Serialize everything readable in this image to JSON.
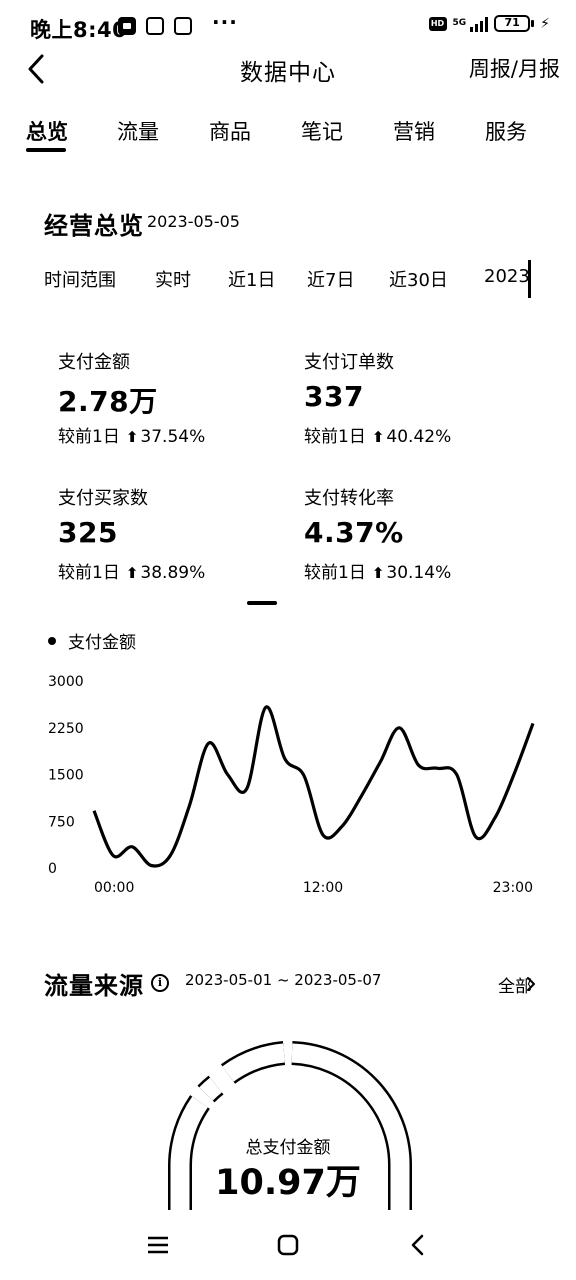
{
  "status_bar": {
    "time": "晚上8:40",
    "network": "5G",
    "battery": "71",
    "icons": [
      "notification-icon",
      "message-icon",
      "app-icon",
      "more-dots-icon",
      "hd-icon",
      "signal-icon",
      "battery-icon",
      "charging-icon"
    ]
  },
  "header": {
    "back_icon": "chevron-left-icon",
    "title": "数据中心",
    "right_action": "周报/月报"
  },
  "tabs": [
    {
      "label": "总览",
      "active": true
    },
    {
      "label": "流量"
    },
    {
      "label": "商品"
    },
    {
      "label": "笔记"
    },
    {
      "label": "营销"
    },
    {
      "label": "服务"
    }
  ],
  "overview": {
    "title": "经营总览",
    "date": "2023-05-05",
    "range_label": "时间范围",
    "ranges": [
      "实时",
      "近1日",
      "近7日",
      "近30日",
      "2023"
    ]
  },
  "metrics": [
    {
      "label": "支付金额",
      "value": "2.78万",
      "compare_label": "较前1日",
      "change": "37.54%",
      "direction": "up"
    },
    {
      "label": "支付订单数",
      "value": "337",
      "compare_label": "较前1日",
      "change": "40.42%",
      "direction": "up"
    },
    {
      "label": "支付买家数",
      "value": "325",
      "compare_label": "较前1日",
      "change": "38.89%",
      "direction": "up"
    },
    {
      "label": "支付转化率",
      "value": "4.37%",
      "compare_label": "较前1日",
      "change": "30.14%",
      "direction": "up"
    }
  ],
  "chart_data": {
    "type": "line",
    "legend": [
      "支付金额"
    ],
    "series": [
      {
        "name": "支付金额",
        "x": [
          0,
          1,
          2,
          3,
          4,
          5,
          6,
          7,
          8,
          9,
          10,
          11,
          12,
          13,
          14,
          15,
          16,
          17,
          18,
          19,
          20,
          21,
          22,
          23
        ],
        "values": [
          920,
          200,
          340,
          40,
          200,
          1000,
          2000,
          1500,
          1270,
          2580,
          1750,
          1480,
          530,
          670,
          1150,
          1700,
          2250,
          1650,
          1600,
          1500,
          500,
          800,
          1500,
          2320
        ]
      }
    ],
    "x_tick_labels": [
      "00:00",
      "12:00",
      "23:00"
    ],
    "y_tick_labels": [
      "3000",
      "2250",
      "1500",
      "750",
      "0"
    ],
    "ylim": [
      0,
      3000
    ],
    "grid": false,
    "color": "#000000"
  },
  "traffic_source": {
    "title": "流量来源",
    "info_icon": "info-icon",
    "date_range": "2023-05-01 ~ 2023-05-07",
    "all_label": "全部",
    "gauge_label": "总支付金额",
    "gauge_value": "10.97万"
  },
  "bottom_nav": {
    "icons": [
      "menu-icon",
      "home-icon",
      "back-icon"
    ]
  }
}
